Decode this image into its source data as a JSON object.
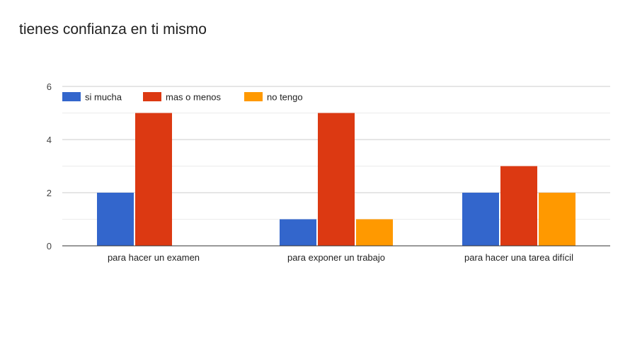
{
  "chart_data": {
    "type": "bar",
    "title": "tienes confianza en ti mismo",
    "categories": [
      "para hacer un examen",
      "para exponer un trabajo",
      "para hacer una tarea difícil"
    ],
    "series": [
      {
        "name": "si mucha",
        "values": [
          2,
          1,
          2
        ],
        "color": "#3366cc"
      },
      {
        "name": "mas o menos",
        "values": [
          5,
          5,
          3
        ],
        "color": "#dc3912"
      },
      {
        "name": "no tengo",
        "values": [
          0,
          1,
          2
        ],
        "color": "#ff9900"
      }
    ],
    "yticks": [
      "0",
      "2",
      "4",
      "6"
    ],
    "ylim": [
      0,
      6
    ],
    "grid": true,
    "legend_position": "top-left"
  }
}
